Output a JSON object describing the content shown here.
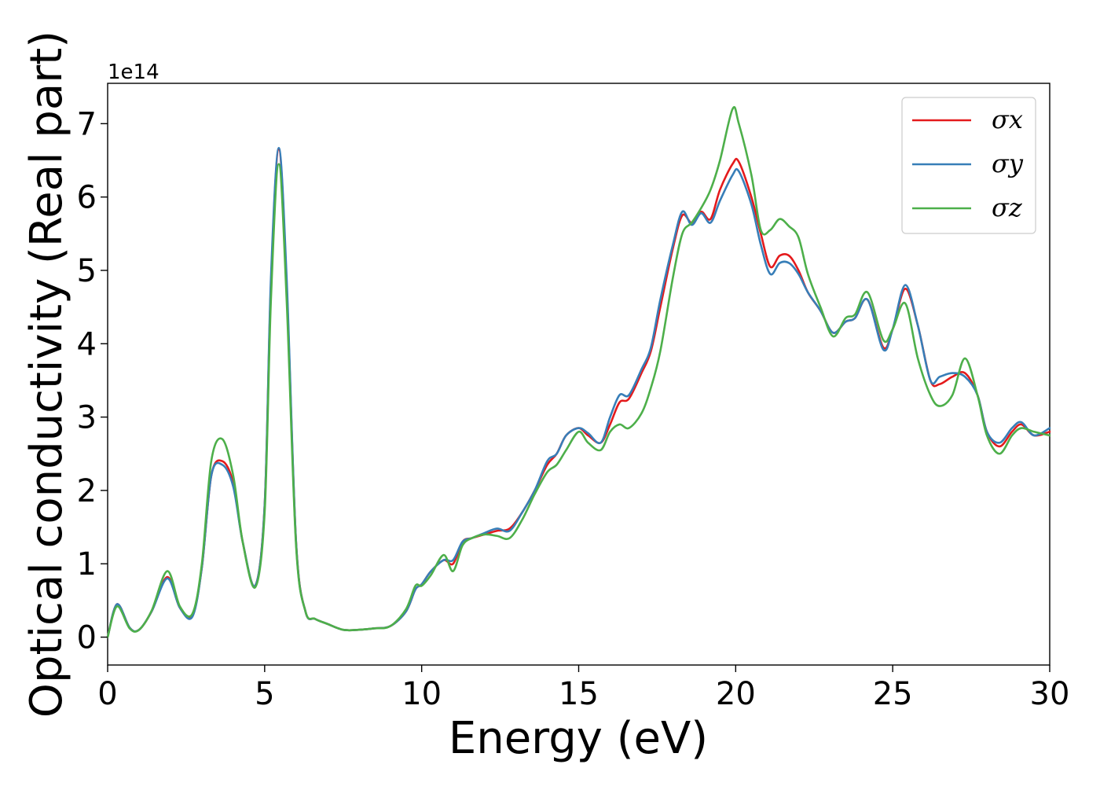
{
  "chart_data": {
    "type": "line",
    "xlabel": "Energy (eV)",
    "ylabel": "Optical conductivity (Real part)",
    "y_offset_label": "1e14",
    "xlim": [
      0,
      30
    ],
    "ylim": [
      -0.38,
      7.55
    ],
    "x_ticks": [
      0,
      5,
      10,
      15,
      20,
      25,
      30
    ],
    "y_ticks": [
      0,
      1,
      2,
      3,
      4,
      5,
      6,
      7
    ],
    "grid": false,
    "legend_position": "top-right",
    "x": [
      0,
      0.3,
      0.7,
      1.0,
      1.4,
      1.9,
      2.3,
      2.7,
      3.0,
      3.3,
      3.65,
      4.0,
      4.3,
      4.7,
      5.0,
      5.2,
      5.45,
      5.7,
      6.0,
      6.3,
      6.6,
      7.0,
      7.5,
      8.0,
      8.5,
      9.0,
      9.5,
      9.8,
      10.0,
      10.3,
      10.7,
      11.0,
      11.3,
      11.6,
      12.0,
      12.4,
      12.8,
      13.2,
      13.6,
      14.0,
      14.3,
      14.6,
      15.0,
      15.3,
      15.7,
      16.0,
      16.3,
      16.6,
      17.0,
      17.3,
      17.6,
      18.0,
      18.3,
      18.6,
      18.9,
      19.2,
      19.5,
      19.9,
      20.1,
      20.5,
      20.8,
      21.1,
      21.4,
      21.7,
      22.0,
      22.3,
      22.7,
      23.1,
      23.5,
      23.8,
      24.2,
      24.7,
      25.0,
      25.4,
      25.8,
      26.2,
      26.5,
      26.9,
      27.3,
      27.7,
      28.0,
      28.4,
      28.8,
      29.1,
      29.5,
      30.0
    ],
    "series": [
      {
        "name": "σx",
        "color": "#e41a1c",
        "values": [
          0.0,
          0.45,
          0.13,
          0.1,
          0.35,
          0.82,
          0.4,
          0.3,
          0.95,
          2.2,
          2.4,
          2.1,
          1.3,
          0.7,
          1.8,
          4.8,
          6.65,
          4.8,
          1.3,
          0.35,
          0.25,
          0.18,
          0.1,
          0.1,
          0.12,
          0.15,
          0.35,
          0.65,
          0.72,
          0.9,
          1.05,
          1.0,
          1.3,
          1.35,
          1.4,
          1.45,
          1.48,
          1.7,
          2.0,
          2.35,
          2.5,
          2.75,
          2.85,
          2.75,
          2.65,
          2.9,
          3.2,
          3.25,
          3.6,
          3.9,
          4.5,
          5.3,
          5.75,
          5.65,
          5.8,
          5.7,
          6.1,
          6.45,
          6.48,
          6.0,
          5.5,
          5.05,
          5.2,
          5.2,
          5.0,
          4.7,
          4.45,
          4.15,
          4.3,
          4.35,
          4.6,
          3.95,
          4.2,
          4.75,
          4.25,
          3.5,
          3.45,
          3.55,
          3.6,
          3.3,
          2.8,
          2.6,
          2.8,
          2.9,
          2.75,
          2.8
        ]
      },
      {
        "name": "σy",
        "color": "#377eb8",
        "values": [
          0.0,
          0.45,
          0.13,
          0.1,
          0.35,
          0.8,
          0.4,
          0.28,
          0.95,
          2.2,
          2.35,
          2.05,
          1.3,
          0.7,
          1.8,
          4.9,
          6.67,
          4.9,
          1.3,
          0.35,
          0.25,
          0.18,
          0.1,
          0.1,
          0.12,
          0.15,
          0.35,
          0.65,
          0.72,
          0.9,
          1.05,
          1.05,
          1.3,
          1.35,
          1.42,
          1.48,
          1.45,
          1.7,
          2.0,
          2.4,
          2.5,
          2.75,
          2.85,
          2.78,
          2.65,
          3.0,
          3.3,
          3.3,
          3.65,
          3.95,
          4.6,
          5.35,
          5.8,
          5.62,
          5.78,
          5.65,
          5.95,
          6.3,
          6.35,
          5.9,
          5.35,
          4.95,
          5.1,
          5.1,
          4.95,
          4.7,
          4.45,
          4.15,
          4.3,
          4.35,
          4.6,
          3.92,
          4.2,
          4.8,
          4.25,
          3.5,
          3.55,
          3.6,
          3.55,
          3.3,
          2.8,
          2.65,
          2.85,
          2.93,
          2.75,
          2.85
        ]
      },
      {
        "name": "σz",
        "color": "#4daf4a",
        "values": [
          0.0,
          0.42,
          0.12,
          0.1,
          0.36,
          0.9,
          0.42,
          0.32,
          1.0,
          2.4,
          2.7,
          2.2,
          1.3,
          0.68,
          1.7,
          4.6,
          6.45,
          4.6,
          1.25,
          0.35,
          0.25,
          0.18,
          0.1,
          0.1,
          0.12,
          0.15,
          0.38,
          0.7,
          0.7,
          0.85,
          1.12,
          0.9,
          1.25,
          1.35,
          1.4,
          1.38,
          1.35,
          1.6,
          1.95,
          2.25,
          2.35,
          2.55,
          2.8,
          2.65,
          2.55,
          2.8,
          2.9,
          2.85,
          3.05,
          3.4,
          3.9,
          4.9,
          5.5,
          5.65,
          5.85,
          6.1,
          6.5,
          7.2,
          7.0,
          6.3,
          5.55,
          5.55,
          5.7,
          5.6,
          5.45,
          4.95,
          4.5,
          4.1,
          4.35,
          4.4,
          4.7,
          4.05,
          4.2,
          4.55,
          3.8,
          3.3,
          3.15,
          3.3,
          3.8,
          3.3,
          2.75,
          2.5,
          2.75,
          2.85,
          2.8,
          2.75
        ]
      }
    ]
  }
}
